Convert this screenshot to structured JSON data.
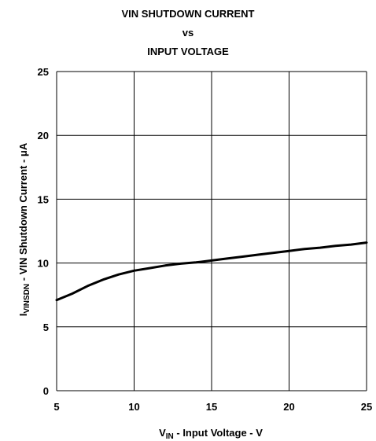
{
  "chart_data": {
    "type": "line",
    "title_lines": [
      "VIN SHUTDOWN CURRENT",
      "vs",
      "INPUT VOLTAGE"
    ],
    "xlabel": {
      "main": "V",
      "sub": "IN",
      "rest": " - Input Voltage - V"
    },
    "ylabel": {
      "main": "I",
      "sub": "VINSDN",
      "rest": " - VIN Shutdown Current -  μA"
    },
    "xlim": [
      5,
      25
    ],
    "ylim": [
      0,
      25
    ],
    "xticks": [
      5,
      10,
      15,
      20,
      25
    ],
    "yticks": [
      0,
      5,
      10,
      15,
      20,
      25
    ],
    "grid": true,
    "series": [
      {
        "x": [
          5,
          6,
          7,
          8,
          9,
          10,
          11,
          12,
          13,
          14,
          15,
          16,
          17,
          18,
          19,
          20,
          21,
          22,
          23,
          24,
          25
        ],
        "y": [
          7.1,
          7.6,
          8.2,
          8.7,
          9.1,
          9.4,
          9.6,
          9.8,
          9.95,
          10.05,
          10.2,
          10.35,
          10.5,
          10.65,
          10.8,
          10.95,
          11.1,
          11.2,
          11.35,
          11.45,
          11.6
        ]
      }
    ]
  }
}
